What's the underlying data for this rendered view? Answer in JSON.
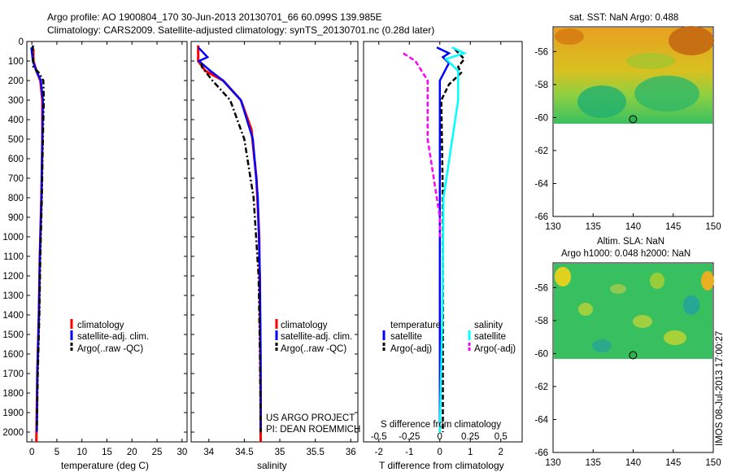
{
  "figure": {
    "title_line1": "Argo profile: AO 1900804_170 30-Jun-2013 20130701_66 60.099S 139.985E",
    "title_line2": "Climatology: CARS2009. Satellite-adjusted climatology: synTS_20130701.nc (0.28d later)",
    "watermark": "IMOS 08-Jul-2013 17:00:27",
    "colors": {
      "climatology": "#ff0000",
      "satellite": "#0000ff",
      "argo": "#000000",
      "s_satellite": "#00ffff",
      "s_argo": "#ff00ff"
    }
  },
  "panels": {
    "temperature": {
      "xlabel": "temperature (deg C)",
      "legend": [
        "climatology",
        "satellite-adj. clim.",
        "Argo(..raw -QC)"
      ]
    },
    "salinity": {
      "xlabel": "salinity",
      "legend": [
        "climatology",
        "satellite-adj. clim.",
        "Argo(..raw -QC)"
      ],
      "note_line1": "US ARGO PROJECT",
      "note_line2": "PI: DEAN ROEMMICH"
    },
    "difference": {
      "xlabel": "T difference from climatology",
      "toplabel": "S difference from climatology",
      "legend_temp_header": "temperature",
      "legend_sal_header": "salinity",
      "legend_temp": [
        "satellite",
        "Argo(-adj)"
      ],
      "legend_sal": [
        "satellite",
        "Argo(-adj)"
      ]
    },
    "sst_map": {
      "title": "sat. SST: NaN Argo: 0.488",
      "xticks": [
        "130",
        "135",
        "140",
        "145",
        "150"
      ],
      "yticks": [
        "-56",
        "-58",
        "-60",
        "-62",
        "-64",
        "-66"
      ]
    },
    "sla_map": {
      "title_line1": "Altim. SLA: NaN",
      "title_line2": "Argo h1000: 0.048 h2000: NaN",
      "xticks": [
        "130",
        "135",
        "140",
        "145",
        "150"
      ],
      "yticks": [
        "-56",
        "-58",
        "-60",
        "-62",
        "-64",
        "-66"
      ]
    }
  },
  "chart_data": [
    {
      "type": "line",
      "panel": "temperature",
      "xlabel": "temperature (deg C)",
      "ylabel": "",
      "xlim": [
        -1,
        31
      ],
      "ylim": [
        2050,
        0
      ],
      "xticks": [
        0,
        5,
        10,
        15,
        20,
        25,
        30
      ],
      "yticks": [
        0,
        100,
        200,
        300,
        400,
        500,
        600,
        700,
        800,
        900,
        1000,
        1100,
        1200,
        1300,
        1400,
        1500,
        1600,
        1700,
        1800,
        1900,
        2000
      ],
      "series": [
        {
          "name": "climatology",
          "x": [
            0.3,
            0.3,
            0.9,
            1.7,
            2.1,
            2.1,
            1.9,
            1.6,
            1.4,
            1.1,
            0.9
          ],
          "y": [
            40,
            100,
            150,
            200,
            300,
            500,
            800,
            1100,
            1400,
            1700,
            2050
          ]
        },
        {
          "name": "satellite-adj. clim.",
          "x": [
            -0.1,
            0.2,
            0.9,
            1.8,
            2.2,
            2.1,
            1.9,
            1.6,
            1.4,
            1.1,
            1.0
          ],
          "y": [
            30,
            100,
            150,
            200,
            300,
            500,
            800,
            1100,
            1400,
            1700,
            2000
          ]
        },
        {
          "name": "Argo(..raw -QC)",
          "x": [
            0.2,
            0.3,
            1.4,
            2.3,
            2.4,
            2.2,
            2.0,
            1.7,
            1.5,
            1.2,
            1.0
          ],
          "y": [
            20,
            130,
            160,
            200,
            300,
            500,
            800,
            1100,
            1400,
            1700,
            2000
          ]
        }
      ]
    },
    {
      "type": "line",
      "panel": "salinity",
      "xlabel": "salinity",
      "ylabel": "",
      "xlim": [
        33.75,
        36.1
      ],
      "ylim": [
        2050,
        0
      ],
      "xticks": [
        34,
        34.5,
        35,
        35.5,
        36
      ],
      "series": [
        {
          "name": "climatology",
          "x": [
            33.85,
            33.85,
            33.95,
            34.2,
            34.45,
            34.6,
            34.67,
            34.71,
            34.72,
            34.73,
            34.73
          ],
          "y": [
            20,
            100,
            150,
            200,
            300,
            450,
            700,
            1000,
            1400,
            1800,
            2050
          ]
        },
        {
          "name": "satellite-adj. clim.",
          "x": [
            33.85,
            33.98,
            33.86,
            34.02,
            34.2,
            34.45,
            34.62,
            34.69,
            34.72,
            34.73,
            34.73
          ],
          "y": [
            30,
            80,
            100,
            150,
            200,
            300,
            500,
            800,
            1200,
            1600,
            2000
          ]
        },
        {
          "name": "Argo(..raw -QC)",
          "x": [
            33.9,
            33.9,
            34.05,
            34.3,
            34.5,
            34.63,
            34.7,
            34.72,
            34.73
          ],
          "y": [
            110,
            130,
            200,
            300,
            500,
            800,
            1200,
            1600,
            2000
          ]
        }
      ]
    },
    {
      "type": "line",
      "panel": "difference",
      "xlabel": "T difference from climatology",
      "ylabel": "",
      "xlim": [
        -2.5,
        2.7
      ],
      "ylim": [
        2050,
        0
      ],
      "xticks": [
        -2,
        -1,
        0,
        1,
        2
      ],
      "top_xticks": [
        "-0.5",
        "-0.25",
        "0",
        "0.25",
        "0.5"
      ],
      "series": [
        {
          "name": "satellite",
          "quantity": "temperature",
          "x": [
            -0.1,
            0.3,
            0.1,
            0.3,
            0.0,
            0.0,
            0.0,
            0.0,
            0.0
          ],
          "y": [
            30,
            60,
            80,
            110,
            200,
            400,
            800,
            1400,
            2000
          ]
        },
        {
          "name": "Argo(-adj)",
          "quantity": "temperature",
          "x": [
            0.5,
            0.8,
            0.6,
            0.7,
            0.3,
            0.05,
            0.1,
            0.1,
            0.1
          ],
          "y": [
            40,
            90,
            130,
            160,
            220,
            300,
            800,
            1400,
            2000
          ]
        },
        {
          "name": "satellite",
          "quantity": "salinity",
          "x": [
            0.1,
            0.2,
            0.05,
            0.1,
            0.15,
            0.15,
            0.03,
            0.02,
            0.0
          ],
          "y": [
            30,
            60,
            90,
            120,
            150,
            300,
            800,
            1400,
            2000
          ]
        },
        {
          "name": "Argo(-adj)",
          "quantity": "salinity",
          "x": [
            -0.3,
            -0.2,
            -0.1,
            -0.1,
            0.0,
            0.0
          ],
          "y": [
            60,
            100,
            200,
            500,
            900,
            1000
          ]
        }
      ]
    },
    {
      "type": "heatmap",
      "panel": "sst_map",
      "title": "sat. SST: NaN Argo: 0.488",
      "xlim": [
        130,
        150
      ],
      "ylim": [
        -66,
        -54.5
      ],
      "data_lat_min": -60.1,
      "argo_position": {
        "lon": 139.985,
        "lat": -60.099
      }
    },
    {
      "type": "heatmap",
      "panel": "sla_map",
      "title": "Altim. SLA: NaN",
      "xlim": [
        130,
        150
      ],
      "ylim": [
        -66,
        -54.5
      ],
      "data_lat_min": -60.1,
      "argo_position": {
        "lon": 139.985,
        "lat": -60.099
      }
    }
  ]
}
